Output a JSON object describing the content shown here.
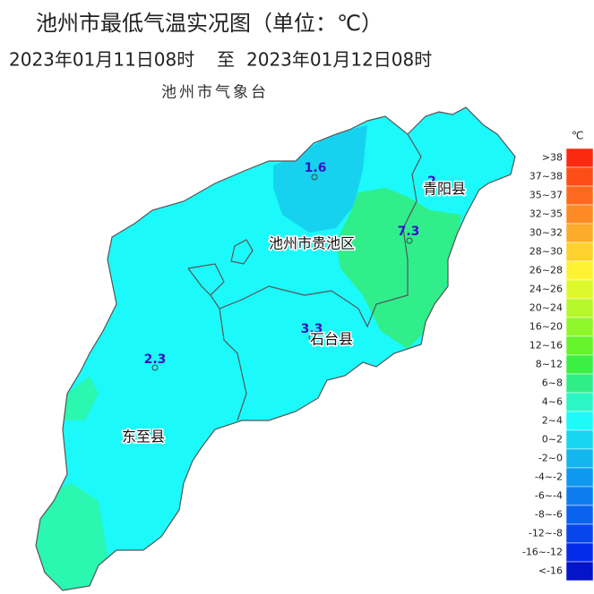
{
  "header": {
    "title": "池州市最低气温实况图（单位：℃）",
    "date_start": "2023年01月11日08时",
    "date_sep": "至",
    "date_end": "2023年01月12日08时",
    "issuer": "池州市气象台"
  },
  "map": {
    "stations": [
      {
        "value": 1.6
      },
      {
        "value": 2
      },
      {
        "value": 7.3
      },
      {
        "value": 3.3
      },
      {
        "value": 2.3
      }
    ],
    "places": [
      {
        "label": "池州市贵池区"
      },
      {
        "label": "青阳县"
      },
      {
        "label": "石台县"
      },
      {
        "label": "东至县"
      }
    ]
  },
  "legend": {
    "unit": "℃",
    "items": [
      {
        "label": ">38",
        "color": "#fa2a0f"
      },
      {
        "label": "37~38",
        "color": "#fc4e16"
      },
      {
        "label": "35~37",
        "color": "#fd6a1f"
      },
      {
        "label": "32~35",
        "color": "#fe8a25"
      },
      {
        "label": "30~32",
        "color": "#fdab2b"
      },
      {
        "label": "28~30",
        "color": "#fdd22d"
      },
      {
        "label": "26~28",
        "color": "#fef233"
      },
      {
        "label": "24~26",
        "color": "#dff82c"
      },
      {
        "label": "20~24",
        "color": "#b7f82c"
      },
      {
        "label": "16~20",
        "color": "#8ff72b"
      },
      {
        "label": "12~16",
        "color": "#66f42b"
      },
      {
        "label": "8~12",
        "color": "#3cef42"
      },
      {
        "label": "6~8",
        "color": "#2fee86"
      },
      {
        "label": "4~6",
        "color": "#2af7c4"
      },
      {
        "label": "2~4",
        "color": "#1cfbfa"
      },
      {
        "label": "0~2",
        "color": "#17d6f0"
      },
      {
        "label": "-2~0",
        "color": "#13b6ee"
      },
      {
        "label": "-4~-2",
        "color": "#0f98ef"
      },
      {
        "label": "-6~-4",
        "color": "#0d7cef"
      },
      {
        "label": "-8~-6",
        "color": "#0a62ee"
      },
      {
        "label": "-12~-8",
        "color": "#0746ec"
      },
      {
        "label": "-16~-12",
        "color": "#052bea"
      },
      {
        "label": "<-16",
        "color": "#0414c8"
      }
    ]
  }
}
